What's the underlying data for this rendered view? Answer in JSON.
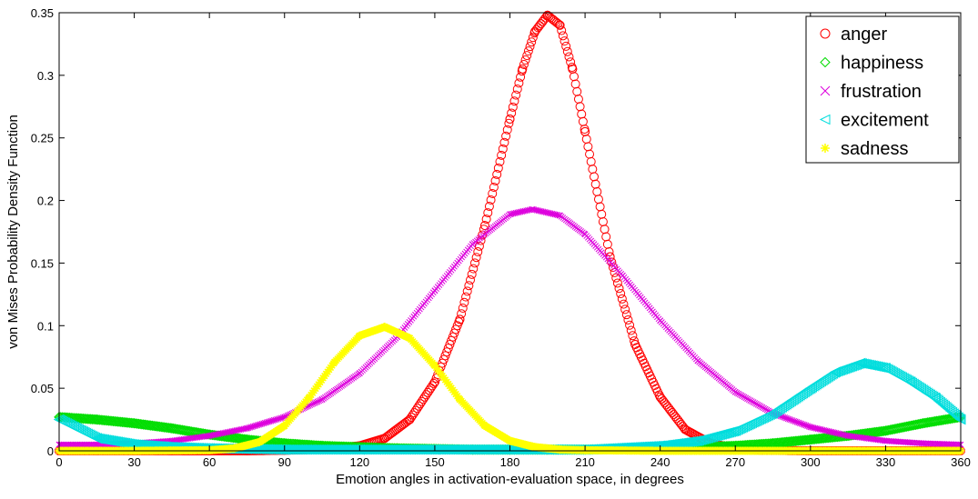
{
  "chart_data": {
    "type": "scatter",
    "title": "",
    "xlabel": "Emotion angles in activation-evaluation space, in degrees",
    "ylabel": "von Mises Probability Density Function",
    "xlim": [
      0,
      360
    ],
    "ylim": [
      0,
      0.35
    ],
    "xticks": [
      0,
      30,
      60,
      90,
      120,
      150,
      180,
      210,
      240,
      270,
      300,
      330,
      360
    ],
    "yticks": [
      0,
      0.05,
      0.1,
      0.15,
      0.2,
      0.25,
      0.3,
      0.35
    ],
    "xtick_labels": [
      "0",
      "30",
      "60",
      "90",
      "120",
      "150",
      "180",
      "210",
      "240",
      "270",
      "300",
      "330",
      "360"
    ],
    "ytick_labels": [
      "0",
      "0.05",
      "0.1",
      "0.15",
      "0.2",
      "0.25",
      "0.3",
      "0.35"
    ],
    "grid": false,
    "legend_position": "top-right",
    "series": [
      {
        "name": "anger",
        "marker": "circle",
        "color": "#ff0000",
        "x": [
          0,
          15,
          30,
          45,
          60,
          75,
          90,
          100,
          110,
          120,
          130,
          140,
          150,
          160,
          170,
          180,
          185,
          190,
          195,
          200,
          205,
          210,
          220,
          230,
          240,
          250,
          260,
          270,
          280,
          300,
          330,
          360
        ],
        "y": [
          0.0,
          0.0,
          0.0,
          0.0,
          0.0,
          0.0,
          0.0005,
          0.001,
          0.002,
          0.004,
          0.01,
          0.025,
          0.055,
          0.105,
          0.18,
          0.265,
          0.305,
          0.335,
          0.348,
          0.34,
          0.305,
          0.255,
          0.155,
          0.085,
          0.043,
          0.017,
          0.006,
          0.002,
          0.0005,
          0.0,
          0.0,
          0.0
        ]
      },
      {
        "name": "happiness",
        "marker": "diamond",
        "color": "#00dd00",
        "x": [
          0,
          15,
          30,
          45,
          60,
          75,
          90,
          105,
          120,
          135,
          150,
          165,
          180,
          195,
          210,
          225,
          240,
          255,
          270,
          285,
          300,
          315,
          330,
          345,
          360
        ],
        "y": [
          0.027,
          0.025,
          0.022,
          0.018,
          0.013,
          0.009,
          0.006,
          0.004,
          0.003,
          0.002,
          0.0015,
          0.001,
          0.001,
          0.001,
          0.001,
          0.0015,
          0.002,
          0.003,
          0.004,
          0.006,
          0.009,
          0.012,
          0.016,
          0.022,
          0.027
        ]
      },
      {
        "name": "frustration",
        "marker": "x",
        "color": "#dd00dd",
        "x": [
          0,
          15,
          30,
          45,
          60,
          75,
          90,
          105,
          120,
          135,
          150,
          165,
          180,
          189,
          200,
          210,
          225,
          240,
          255,
          270,
          285,
          300,
          315,
          330,
          345,
          360
        ],
        "y": [
          0.005,
          0.005,
          0.006,
          0.008,
          0.012,
          0.018,
          0.027,
          0.041,
          0.062,
          0.091,
          0.128,
          0.165,
          0.189,
          0.193,
          0.188,
          0.173,
          0.14,
          0.104,
          0.072,
          0.047,
          0.03,
          0.019,
          0.012,
          0.008,
          0.006,
          0.005
        ]
      },
      {
        "name": "excitement",
        "marker": "triangle-left",
        "color": "#00dddd",
        "x": [
          0,
          15,
          30,
          45,
          60,
          90,
          120,
          150,
          180,
          210,
          240,
          255,
          270,
          285,
          300,
          310,
          320,
          330,
          340,
          350,
          360
        ],
        "y": [
          0.025,
          0.01,
          0.005,
          0.003,
          0.002,
          0.001,
          0.001,
          0.001,
          0.001,
          0.001,
          0.004,
          0.008,
          0.016,
          0.03,
          0.05,
          0.063,
          0.07,
          0.066,
          0.055,
          0.042,
          0.025
        ]
      },
      {
        "name": "sadness",
        "marker": "asterisk",
        "color": "#ffff00",
        "x": [
          0,
          30,
          60,
          70,
          80,
          90,
          100,
          110,
          120,
          130,
          140,
          150,
          160,
          170,
          180,
          190,
          200,
          210,
          240,
          270,
          300,
          330,
          360
        ],
        "y": [
          0.0,
          0.0,
          0.0005,
          0.002,
          0.007,
          0.02,
          0.043,
          0.071,
          0.092,
          0.099,
          0.09,
          0.068,
          0.041,
          0.02,
          0.008,
          0.003,
          0.001,
          0.0005,
          0.0,
          0.0,
          0.0,
          0.0,
          0.0
        ]
      }
    ]
  }
}
